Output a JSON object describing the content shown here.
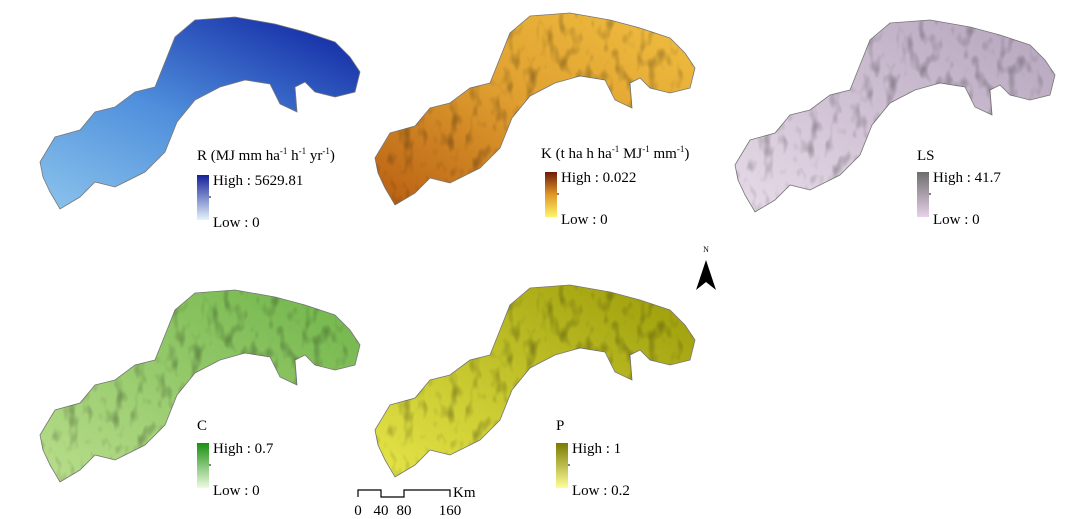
{
  "panels": [
    {
      "title": [
        {
          "text": "R (MJ mm ha"
        },
        {
          "sup": "-1"
        },
        {
          "text": " h"
        },
        {
          "sup": "-1"
        },
        {
          "text": " yr"
        },
        {
          "sup": "-1"
        },
        {
          "text": ")"
        }
      ],
      "high": "High : 5629.81",
      "low": "Low : 0"
    },
    {
      "title": [
        {
          "text": "K (t ha h ha"
        },
        {
          "sup": "-1"
        },
        {
          "text": " MJ"
        },
        {
          "sup": "-1"
        },
        {
          "text": " mm"
        },
        {
          "sup": "-1"
        },
        {
          "text": ")"
        }
      ],
      "high": "High : 0.022",
      "low": "Low : 0"
    },
    {
      "title": [
        {
          "text": "LS"
        }
      ],
      "high": "High : 41.7",
      "low": "Low : 0"
    },
    {
      "title": [
        {
          "text": "C"
        }
      ],
      "high": "High : 0.7",
      "low": "Low : 0"
    },
    {
      "title": [
        {
          "text": "P"
        }
      ],
      "high": "High : 1",
      "low": "Low : 0.2"
    }
  ],
  "north_arrow": {
    "label": "N"
  },
  "scale_bar": {
    "ticks": [
      0,
      40,
      80,
      160
    ],
    "unit": "Km"
  }
}
